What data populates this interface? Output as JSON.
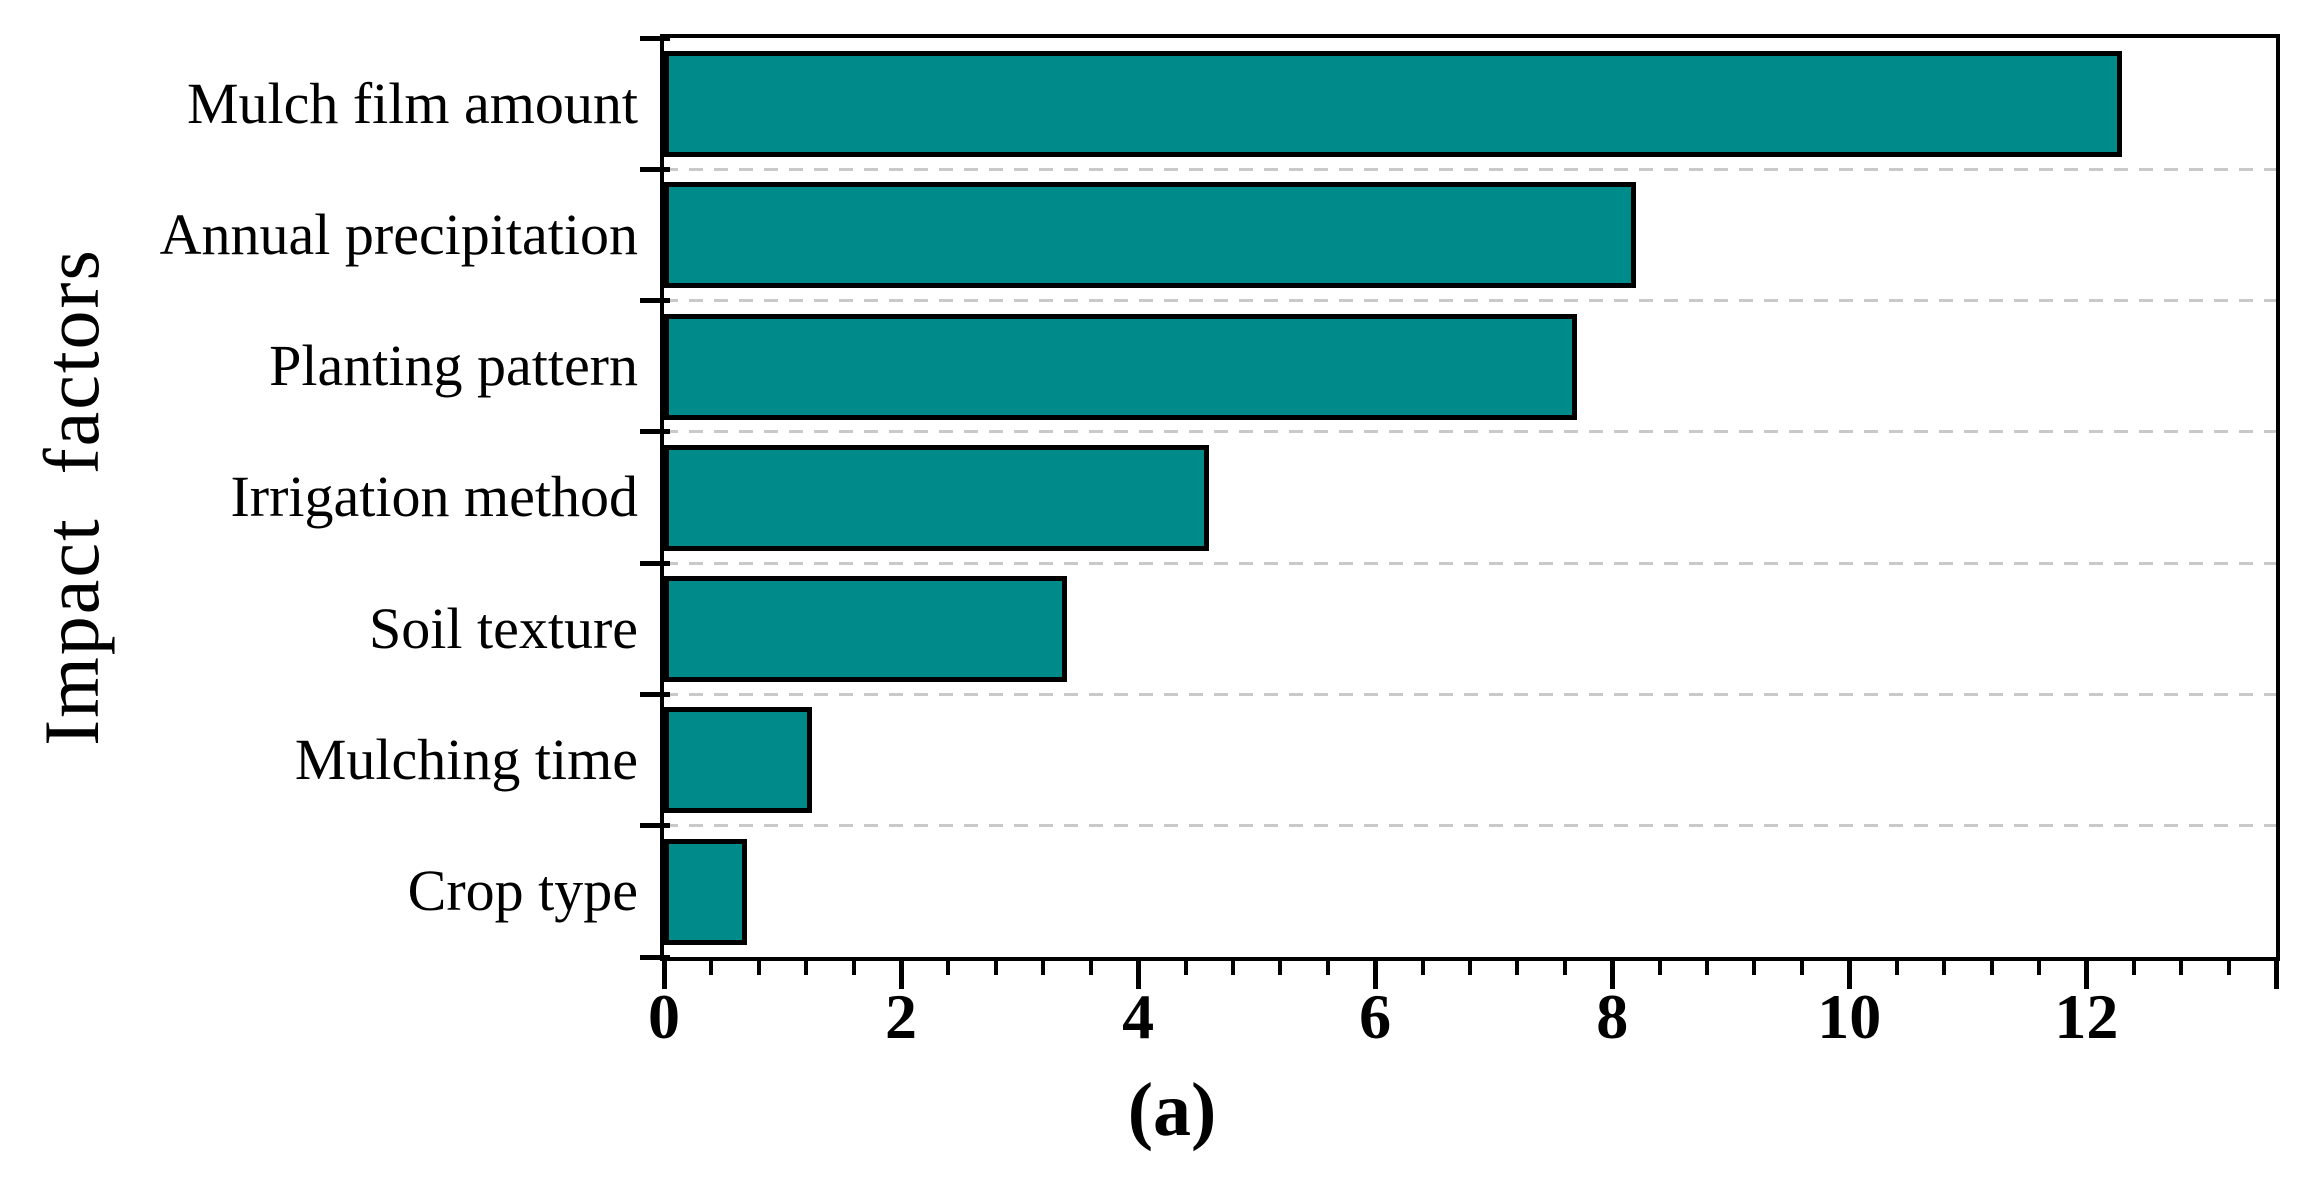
{
  "figure": {
    "background": "#ffffff",
    "y_axis_title": "Impact  factors",
    "caption": "(a)"
  },
  "chart_data": {
    "type": "bar",
    "orientation": "horizontal",
    "title": "",
    "xlabel": "",
    "ylabel": "Impact factors",
    "categories": [
      "Mulch film amount",
      "Annual precipitation",
      "Planting pattern",
      "Irrigation method",
      "Soil texture",
      "Mulching time",
      "Crop type"
    ],
    "values": [
      12.3,
      8.2,
      7.7,
      4.6,
      3.4,
      1.25,
      0.7
    ],
    "xlim": [
      0,
      13.6
    ],
    "x_ticks": [
      0,
      2,
      4,
      6,
      8,
      10,
      12
    ],
    "x_tick_labels": [
      "0",
      "2",
      "4",
      "6",
      "8",
      "10",
      "12"
    ],
    "x_minor_tick_step": 0.4,
    "grid": "dashed horizontal lines at category boundaries",
    "legend": "none",
    "bar_color": "#008B8B",
    "bar_border_color": "#000000",
    "gridline_color": "#c9c9c9",
    "axis_color": "#000000"
  }
}
